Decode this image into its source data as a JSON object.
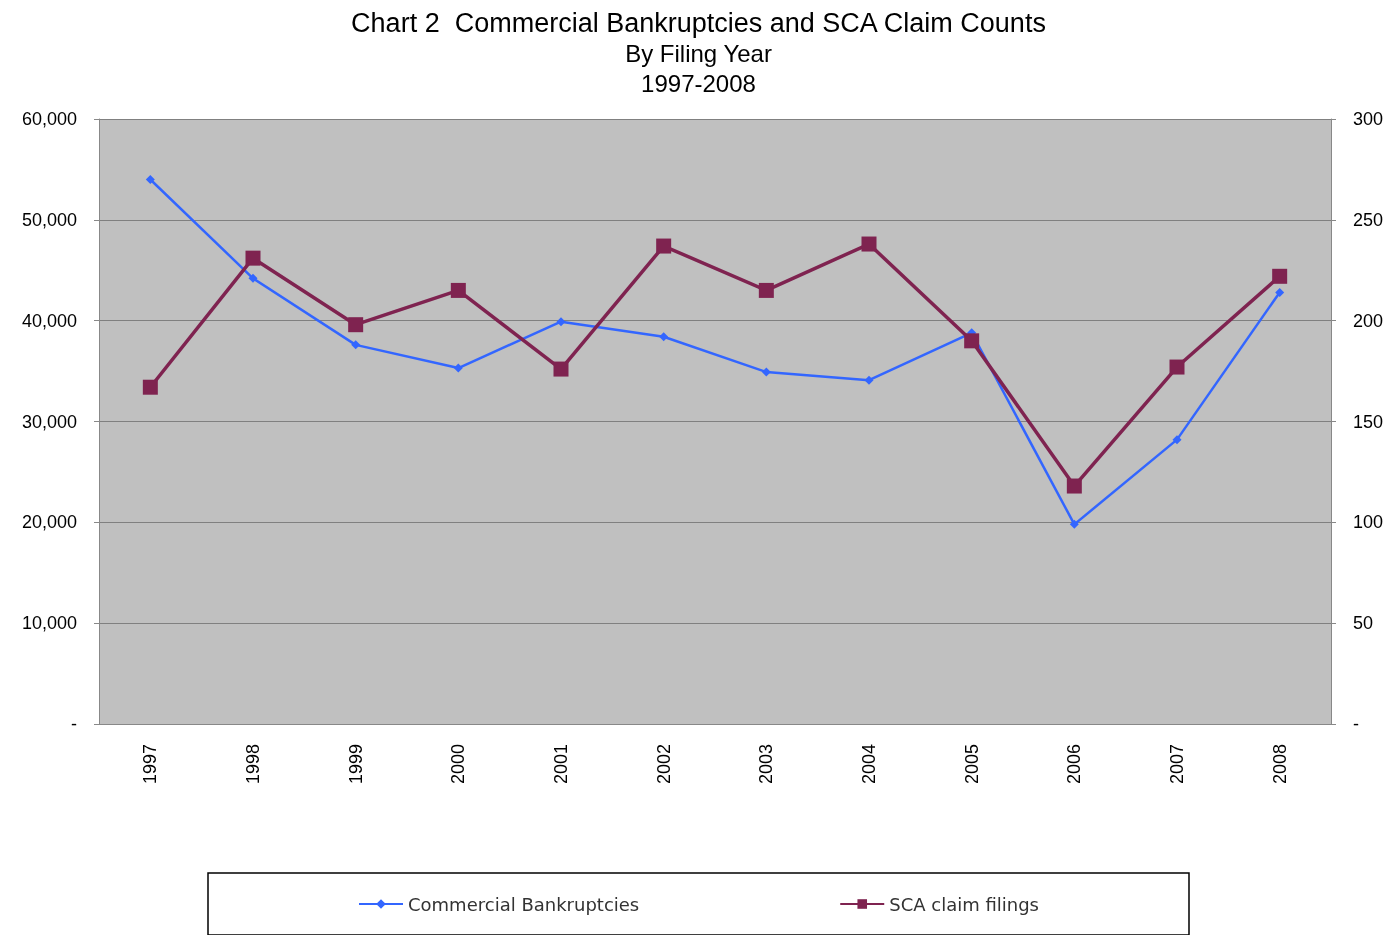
{
  "chart_data": {
    "type": "line",
    "title": "Chart 2  Commercial Bankruptcies and SCA Claim Counts",
    "subtitle": "By Filing Year\n1997-2008",
    "categories": [
      "1997",
      "1998",
      "1999",
      "2000",
      "2001",
      "2002",
      "2003",
      "2004",
      "2005",
      "2006",
      "2007",
      "2008"
    ],
    "series": [
      {
        "name": "Commercial Bankruptcies",
        "color": "#3366ff",
        "marker": "diamond",
        "values": [
          54000,
          44200,
          37600,
          35300,
          39900,
          38400,
          34900,
          34100,
          38800,
          19800,
          28200,
          42800
        ]
      },
      {
        "name": "SCA claim filings",
        "color": "#7f2350",
        "marker": "square",
        "axis": "y2",
        "values": [
          167,
          231,
          198,
          215,
          176,
          237,
          215,
          238,
          190,
          118,
          177,
          222
        ]
      }
    ],
    "ylim": [
      0,
      60000
    ],
    "yticks": [
      {
        "value": 0,
        "label": "-"
      },
      {
        "value": 10000,
        "label": "10,000"
      },
      {
        "value": 20000,
        "label": "20,000"
      },
      {
        "value": 30000,
        "label": "30,000"
      },
      {
        "value": 40000,
        "label": "40,000"
      },
      {
        "value": 50000,
        "label": "50,000"
      },
      {
        "value": 60000,
        "label": "60,000"
      }
    ],
    "y2lim": [
      0,
      300
    ],
    "y2ticks": [
      {
        "value": 0,
        "label": "-"
      },
      50,
      100,
      150,
      200,
      250,
      300
    ],
    "grid": "y",
    "legend": "bottom"
  }
}
